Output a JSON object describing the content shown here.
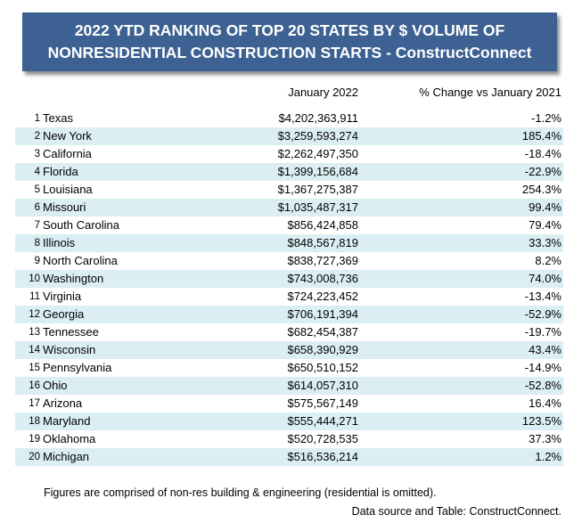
{
  "title": {
    "line1": "2022 YTD RANKING OF TOP 20 STATES BY $ VOLUME OF",
    "line2": "NONRESIDENTIAL CONSTRUCTION STARTS - ConstructConnect"
  },
  "columns": {
    "value_header": "January 2022",
    "pct_header": "% Change vs January 2021"
  },
  "rows": [
    {
      "rank": "1",
      "state": "Texas",
      "value": "$4,202,363,911",
      "pct": "-1.2%"
    },
    {
      "rank": "2",
      "state": "New York",
      "value": "$3,259,593,274",
      "pct": "185.4%"
    },
    {
      "rank": "3",
      "state": "California",
      "value": "$2,262,497,350",
      "pct": "-18.4%"
    },
    {
      "rank": "4",
      "state": "Florida",
      "value": "$1,399,156,684",
      "pct": "-22.9%"
    },
    {
      "rank": "5",
      "state": "Louisiana",
      "value": "$1,367,275,387",
      "pct": "254.3%"
    },
    {
      "rank": "6",
      "state": "Missouri",
      "value": "$1,035,487,317",
      "pct": "99.4%"
    },
    {
      "rank": "7",
      "state": "South Carolina",
      "value": "$856,424,858",
      "pct": "79.4%"
    },
    {
      "rank": "8",
      "state": "Illinois",
      "value": "$848,567,819",
      "pct": "33.3%"
    },
    {
      "rank": "9",
      "state": "North Carolina",
      "value": "$838,727,369",
      "pct": "8.2%"
    },
    {
      "rank": "10",
      "state": "Washington",
      "value": "$743,008,736",
      "pct": "74.0%"
    },
    {
      "rank": "11",
      "state": "Virginia",
      "value": "$724,223,452",
      "pct": "-13.4%"
    },
    {
      "rank": "12",
      "state": "Georgia",
      "value": "$706,191,394",
      "pct": "-52.9%"
    },
    {
      "rank": "13",
      "state": "Tennessee",
      "value": "$682,454,387",
      "pct": "-19.7%"
    },
    {
      "rank": "14",
      "state": "Wisconsin",
      "value": "$658,390,929",
      "pct": "43.4%"
    },
    {
      "rank": "15",
      "state": "Pennsylvania",
      "value": "$650,510,152",
      "pct": "-14.9%"
    },
    {
      "rank": "16",
      "state": "Ohio",
      "value": "$614,057,310",
      "pct": "-52.8%"
    },
    {
      "rank": "17",
      "state": "Arizona",
      "value": "$575,567,149",
      "pct": "16.4%"
    },
    {
      "rank": "18",
      "state": "Maryland",
      "value": "$555,444,271",
      "pct": "123.5%"
    },
    {
      "rank": "19",
      "state": "Oklahoma",
      "value": "$520,728,535",
      "pct": "37.3%"
    },
    {
      "rank": "20",
      "state": "Michigan",
      "value": "$516,536,214",
      "pct": "1.2%"
    }
  ],
  "footnotes": {
    "note": "Figures are comprised of non-res building & engineering (residential is omitted).",
    "source": "Data source and Table: ConstructConnect."
  },
  "colors": {
    "title_bg": "#3d6192",
    "title_text": "#ffffff",
    "alt_row_bg": "#dbeef3"
  }
}
